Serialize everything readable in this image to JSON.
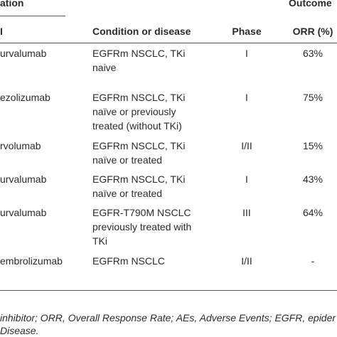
{
  "table": {
    "group_headers": [
      "ation",
      "Outcome"
    ],
    "columns": [
      "I",
      "Condition or disease",
      "Phase",
      "ORR (%)"
    ],
    "rows": [
      [
        "urvalumab",
        [
          "EGFRm NSCLC, TKi",
          "naive"
        ],
        "I",
        "63%"
      ],
      [
        "ezolizumab",
        [
          "EGFRm NSCLC, TKi",
          "naïve or previously",
          "treated (without TKi)"
        ],
        "I",
        "75%"
      ],
      [
        "rvolumab",
        [
          "EGFRm NSCLC, TKi",
          "naïve or treated"
        ],
        "I/II",
        "15%"
      ],
      [
        "urvalumab",
        [
          "EGFRm NSCLC, TKi",
          "naïve or treated"
        ],
        "I",
        "43%"
      ],
      [
        "urvalumab",
        [
          "EGFR-T790M NSCLC",
          "previously treated with",
          "TKi"
        ],
        "III",
        "64%"
      ],
      [
        "embrolizumab",
        [
          "EGFRm NSCLC"
        ],
        "I/II",
        "-"
      ]
    ]
  },
  "footnote": [
    "inhibitor; ORR, Overall Response Rate; AEs, Adverse Events; EGFR, epider",
    "Disease."
  ]
}
